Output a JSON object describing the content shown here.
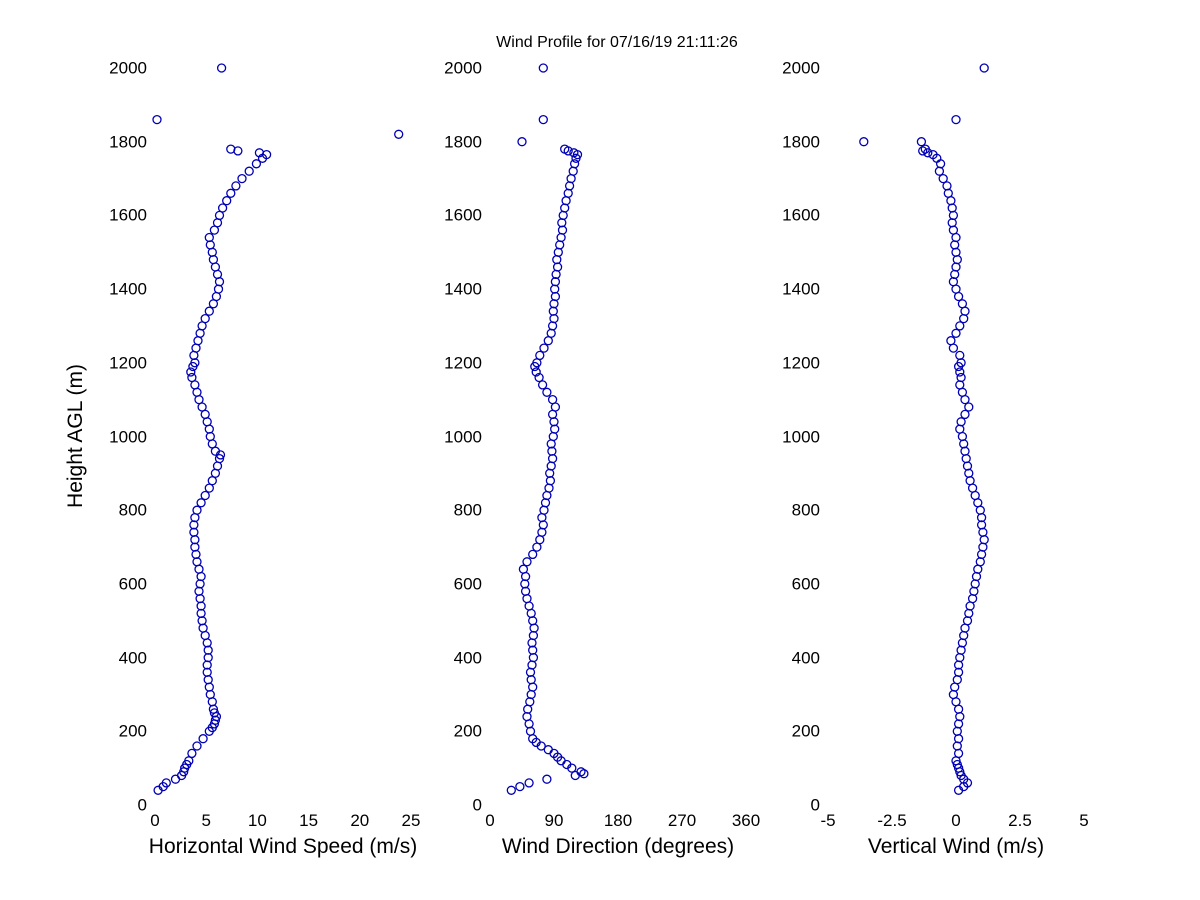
{
  "figure": {
    "title": "Wind Profile for  07/16/19 21:11:26",
    "ylabel": "Height AGL (m)",
    "marker_color": "#0000b4",
    "background": "#ffffff"
  },
  "chart_data": [
    {
      "type": "scatter",
      "xlabel": "Horizontal Wind Speed (m/s)",
      "ylabel": "Height AGL (m)",
      "xlim": [
        0,
        25
      ],
      "ylim": [
        0,
        2000
      ],
      "xticks": [
        0,
        5,
        10,
        15,
        20,
        25
      ],
      "yticks": [
        0,
        200,
        400,
        600,
        800,
        1000,
        1200,
        1400,
        1600,
        1800,
        2000
      ],
      "grid": false,
      "legend": "none",
      "points": [
        [
          0.3,
          40
        ],
        [
          0.8,
          50
        ],
        [
          1.1,
          60
        ],
        [
          2.0,
          70
        ],
        [
          2.6,
          80
        ],
        [
          2.8,
          90
        ],
        [
          2.9,
          100
        ],
        [
          3.1,
          110
        ],
        [
          3.3,
          120
        ],
        [
          3.6,
          140
        ],
        [
          4.1,
          160
        ],
        [
          4.7,
          180
        ],
        [
          5.3,
          200
        ],
        [
          5.6,
          210
        ],
        [
          5.8,
          220
        ],
        [
          5.9,
          230
        ],
        [
          6.0,
          240
        ],
        [
          5.8,
          250
        ],
        [
          5.7,
          260
        ],
        [
          5.6,
          280
        ],
        [
          5.4,
          300
        ],
        [
          5.3,
          320
        ],
        [
          5.2,
          340
        ],
        [
          5.1,
          360
        ],
        [
          5.1,
          380
        ],
        [
          5.2,
          400
        ],
        [
          5.2,
          420
        ],
        [
          5.1,
          440
        ],
        [
          4.9,
          460
        ],
        [
          4.7,
          480
        ],
        [
          4.6,
          500
        ],
        [
          4.5,
          520
        ],
        [
          4.5,
          540
        ],
        [
          4.4,
          560
        ],
        [
          4.3,
          580
        ],
        [
          4.4,
          600
        ],
        [
          4.5,
          620
        ],
        [
          4.3,
          640
        ],
        [
          4.1,
          660
        ],
        [
          4.0,
          680
        ],
        [
          3.9,
          700
        ],
        [
          3.9,
          720
        ],
        [
          3.8,
          740
        ],
        [
          3.8,
          760
        ],
        [
          3.9,
          780
        ],
        [
          4.1,
          800
        ],
        [
          4.5,
          820
        ],
        [
          4.9,
          840
        ],
        [
          5.3,
          860
        ],
        [
          5.6,
          880
        ],
        [
          5.9,
          900
        ],
        [
          6.1,
          920
        ],
        [
          6.3,
          940
        ],
        [
          6.4,
          950
        ],
        [
          5.9,
          960
        ],
        [
          5.6,
          980
        ],
        [
          5.4,
          1000
        ],
        [
          5.3,
          1020
        ],
        [
          5.1,
          1040
        ],
        [
          4.9,
          1060
        ],
        [
          4.6,
          1080
        ],
        [
          4.3,
          1100
        ],
        [
          4.1,
          1120
        ],
        [
          3.9,
          1140
        ],
        [
          3.6,
          1160
        ],
        [
          3.5,
          1175
        ],
        [
          3.7,
          1190
        ],
        [
          3.9,
          1200
        ],
        [
          3.8,
          1220
        ],
        [
          4.0,
          1240
        ],
        [
          4.2,
          1260
        ],
        [
          4.4,
          1280
        ],
        [
          4.6,
          1300
        ],
        [
          4.9,
          1320
        ],
        [
          5.3,
          1340
        ],
        [
          5.7,
          1360
        ],
        [
          6.0,
          1380
        ],
        [
          6.2,
          1400
        ],
        [
          6.3,
          1420
        ],
        [
          6.1,
          1440
        ],
        [
          5.9,
          1460
        ],
        [
          5.7,
          1480
        ],
        [
          5.6,
          1500
        ],
        [
          5.4,
          1520
        ],
        [
          5.3,
          1540
        ],
        [
          5.8,
          1560
        ],
        [
          6.1,
          1580
        ],
        [
          6.3,
          1600
        ],
        [
          6.6,
          1620
        ],
        [
          7.0,
          1640
        ],
        [
          7.4,
          1660
        ],
        [
          7.9,
          1680
        ],
        [
          8.5,
          1700
        ],
        [
          9.2,
          1720
        ],
        [
          9.9,
          1740
        ],
        [
          10.5,
          1755
        ],
        [
          10.9,
          1765
        ],
        [
          10.2,
          1770
        ],
        [
          8.1,
          1775
        ],
        [
          7.4,
          1780
        ],
        [
          23.8,
          1820
        ],
        [
          0.2,
          1860
        ],
        [
          6.5,
          2000
        ]
      ]
    },
    {
      "type": "scatter",
      "xlabel": "Wind Direction (degrees)",
      "ylabel": "Height AGL (m)",
      "xlim": [
        0,
        360
      ],
      "ylim": [
        0,
        2000
      ],
      "xticks": [
        0,
        90,
        180,
        270,
        360
      ],
      "yticks": [
        0,
        200,
        400,
        600,
        800,
        1000,
        1200,
        1400,
        1600,
        1800,
        2000
      ],
      "grid": false,
      "legend": "none",
      "points": [
        [
          30,
          40
        ],
        [
          42,
          50
        ],
        [
          55,
          60
        ],
        [
          80,
          70
        ],
        [
          120,
          80
        ],
        [
          132,
          85
        ],
        [
          128,
          90
        ],
        [
          115,
          100
        ],
        [
          108,
          110
        ],
        [
          100,
          120
        ],
        [
          95,
          130
        ],
        [
          90,
          140
        ],
        [
          82,
          150
        ],
        [
          72,
          160
        ],
        [
          65,
          170
        ],
        [
          60,
          180
        ],
        [
          57,
          200
        ],
        [
          55,
          220
        ],
        [
          52,
          240
        ],
        [
          53,
          260
        ],
        [
          56,
          280
        ],
        [
          58,
          300
        ],
        [
          60,
          320
        ],
        [
          58,
          340
        ],
        [
          57,
          360
        ],
        [
          59,
          380
        ],
        [
          61,
          400
        ],
        [
          60,
          420
        ],
        [
          59,
          440
        ],
        [
          61,
          460
        ],
        [
          62,
          480
        ],
        [
          60,
          500
        ],
        [
          58,
          520
        ],
        [
          55,
          540
        ],
        [
          52,
          560
        ],
        [
          50,
          580
        ],
        [
          49,
          600
        ],
        [
          50,
          620
        ],
        [
          47,
          640
        ],
        [
          52,
          660
        ],
        [
          60,
          680
        ],
        [
          66,
          700
        ],
        [
          70,
          720
        ],
        [
          73,
          740
        ],
        [
          75,
          760
        ],
        [
          73,
          780
        ],
        [
          76,
          800
        ],
        [
          78,
          820
        ],
        [
          80,
          840
        ],
        [
          83,
          860
        ],
        [
          85,
          880
        ],
        [
          84,
          900
        ],
        [
          86,
          920
        ],
        [
          88,
          940
        ],
        [
          87,
          960
        ],
        [
          86,
          980
        ],
        [
          89,
          1000
        ],
        [
          91,
          1020
        ],
        [
          90,
          1040
        ],
        [
          88,
          1060
        ],
        [
          92,
          1080
        ],
        [
          88,
          1100
        ],
        [
          80,
          1120
        ],
        [
          74,
          1140
        ],
        [
          69,
          1160
        ],
        [
          65,
          1175
        ],
        [
          63,
          1190
        ],
        [
          66,
          1200
        ],
        [
          70,
          1220
        ],
        [
          76,
          1240
        ],
        [
          82,
          1260
        ],
        [
          86,
          1280
        ],
        [
          88,
          1300
        ],
        [
          90,
          1320
        ],
        [
          89,
          1340
        ],
        [
          90,
          1360
        ],
        [
          92,
          1380
        ],
        [
          91,
          1400
        ],
        [
          92,
          1420
        ],
        [
          93,
          1440
        ],
        [
          95,
          1460
        ],
        [
          94,
          1480
        ],
        [
          96,
          1500
        ],
        [
          98,
          1520
        ],
        [
          100,
          1540
        ],
        [
          102,
          1560
        ],
        [
          101,
          1580
        ],
        [
          103,
          1600
        ],
        [
          105,
          1620
        ],
        [
          107,
          1640
        ],
        [
          110,
          1660
        ],
        [
          112,
          1680
        ],
        [
          114,
          1700
        ],
        [
          117,
          1720
        ],
        [
          119,
          1740
        ],
        [
          121,
          1755
        ],
        [
          123,
          1765
        ],
        [
          118,
          1770
        ],
        [
          110,
          1775
        ],
        [
          105,
          1780
        ],
        [
          45,
          1800
        ],
        [
          75,
          1860
        ],
        [
          75,
          2000
        ]
      ]
    },
    {
      "type": "scatter",
      "xlabel": "Vertical Wind (m/s)",
      "ylabel": "Height AGL (m)",
      "xlim": [
        -5,
        5
      ],
      "ylim": [
        0,
        2000
      ],
      "xticks": [
        -5,
        -2.5,
        0,
        2.5,
        5
      ],
      "yticks": [
        0,
        200,
        400,
        600,
        800,
        1000,
        1200,
        1400,
        1600,
        1800,
        2000
      ],
      "grid": false,
      "legend": "none",
      "points": [
        [
          0.1,
          40
        ],
        [
          0.3,
          50
        ],
        [
          0.45,
          60
        ],
        [
          0.3,
          70
        ],
        [
          0.2,
          80
        ],
        [
          0.15,
          90
        ],
        [
          0.1,
          100
        ],
        [
          0.05,
          110
        ],
        [
          0.0,
          120
        ],
        [
          0.1,
          140
        ],
        [
          0.05,
          160
        ],
        [
          0.1,
          180
        ],
        [
          0.05,
          200
        ],
        [
          0.1,
          220
        ],
        [
          0.15,
          240
        ],
        [
          0.1,
          260
        ],
        [
          0.0,
          280
        ],
        [
          -0.1,
          300
        ],
        [
          -0.05,
          320
        ],
        [
          0.05,
          340
        ],
        [
          0.1,
          360
        ],
        [
          0.1,
          380
        ],
        [
          0.15,
          400
        ],
        [
          0.2,
          420
        ],
        [
          0.25,
          440
        ],
        [
          0.3,
          460
        ],
        [
          0.35,
          480
        ],
        [
          0.45,
          500
        ],
        [
          0.5,
          520
        ],
        [
          0.55,
          540
        ],
        [
          0.65,
          560
        ],
        [
          0.7,
          580
        ],
        [
          0.75,
          600
        ],
        [
          0.8,
          620
        ],
        [
          0.85,
          640
        ],
        [
          0.95,
          660
        ],
        [
          1.0,
          680
        ],
        [
          1.05,
          700
        ],
        [
          1.1,
          720
        ],
        [
          1.05,
          740
        ],
        [
          1.0,
          760
        ],
        [
          1.0,
          780
        ],
        [
          0.95,
          800
        ],
        [
          0.85,
          820
        ],
        [
          0.75,
          840
        ],
        [
          0.65,
          860
        ],
        [
          0.55,
          880
        ],
        [
          0.5,
          900
        ],
        [
          0.45,
          920
        ],
        [
          0.4,
          940
        ],
        [
          0.35,
          960
        ],
        [
          0.3,
          980
        ],
        [
          0.25,
          1000
        ],
        [
          0.15,
          1020
        ],
        [
          0.2,
          1040
        ],
        [
          0.35,
          1060
        ],
        [
          0.5,
          1080
        ],
        [
          0.35,
          1100
        ],
        [
          0.25,
          1120
        ],
        [
          0.15,
          1140
        ],
        [
          0.2,
          1160
        ],
        [
          0.15,
          1175
        ],
        [
          0.1,
          1190
        ],
        [
          0.2,
          1200
        ],
        [
          0.15,
          1220
        ],
        [
          -0.1,
          1240
        ],
        [
          -0.2,
          1260
        ],
        [
          0.0,
          1280
        ],
        [
          0.15,
          1300
        ],
        [
          0.3,
          1320
        ],
        [
          0.35,
          1340
        ],
        [
          0.25,
          1360
        ],
        [
          0.1,
          1380
        ],
        [
          0.0,
          1400
        ],
        [
          -0.1,
          1420
        ],
        [
          -0.05,
          1440
        ],
        [
          0.0,
          1460
        ],
        [
          0.05,
          1480
        ],
        [
          0.0,
          1500
        ],
        [
          -0.05,
          1520
        ],
        [
          0.0,
          1540
        ],
        [
          -0.1,
          1560
        ],
        [
          -0.15,
          1580
        ],
        [
          -0.1,
          1600
        ],
        [
          -0.15,
          1620
        ],
        [
          -0.2,
          1640
        ],
        [
          -0.3,
          1660
        ],
        [
          -0.35,
          1680
        ],
        [
          -0.5,
          1700
        ],
        [
          -0.65,
          1720
        ],
        [
          -0.6,
          1740
        ],
        [
          -0.75,
          1755
        ],
        [
          -0.9,
          1765
        ],
        [
          -1.1,
          1770
        ],
        [
          -1.3,
          1775
        ],
        [
          -1.2,
          1780
        ],
        [
          -3.6,
          1800
        ],
        [
          -1.35,
          1800
        ],
        [
          0.0,
          1860
        ],
        [
          1.1,
          2000
        ]
      ]
    }
  ]
}
